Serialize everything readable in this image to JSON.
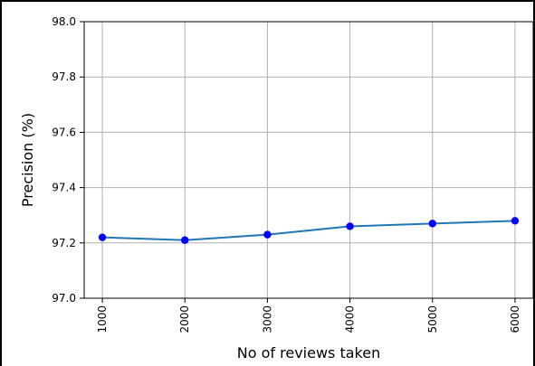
{
  "chart_data": {
    "type": "line",
    "title": "",
    "xlabel": "No of reviews taken",
    "ylabel": "Precision (%)",
    "x": [
      1000,
      2000,
      3000,
      4000,
      5000,
      6000
    ],
    "series": [
      {
        "values": [
          97.22,
          97.21,
          97.23,
          97.26,
          97.27,
          97.28
        ],
        "line_color": "#1f77b4",
        "marker_color": "#0000ff"
      }
    ],
    "xticks": [
      "1000",
      "2000",
      "3000",
      "4000",
      "5000",
      "6000"
    ],
    "yticks": [
      "97.0",
      "97.2",
      "97.4",
      "97.6",
      "97.8",
      "98.0"
    ],
    "ylim": [
      97.0,
      98.0
    ],
    "x_tick_rotation": "vertical",
    "grid": true,
    "legend": "none"
  }
}
